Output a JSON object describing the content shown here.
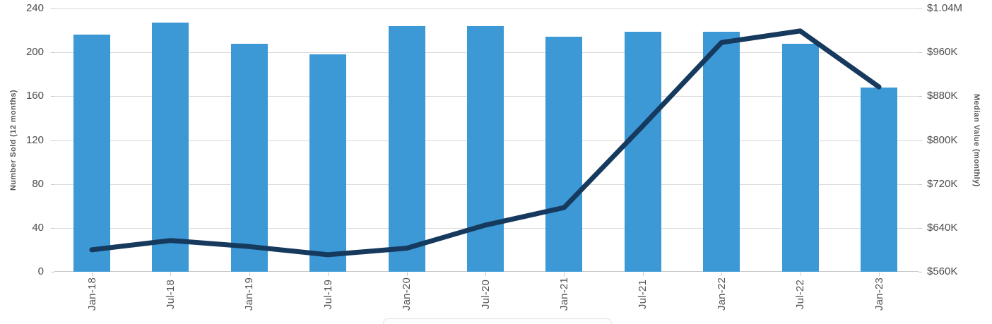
{
  "chart_data": {
    "type": "combo-bar-line",
    "categories": [
      "Jan-18",
      "Jul-18",
      "Jan-19",
      "Jul-19",
      "Jan-20",
      "Jul-20",
      "Jan-21",
      "Jul-21",
      "Jan-22",
      "Jul-22",
      "Jan-23"
    ],
    "series": [
      {
        "name": "Number Sold (12 months)",
        "type": "bar",
        "axis": "left",
        "values": [
          216,
          227,
          208,
          198,
          224,
          224,
          214,
          219,
          219,
          208,
          168
        ]
      },
      {
        "name": "Median Value (monthly)",
        "type": "line",
        "axis": "right",
        "values": [
          600000,
          617000,
          606000,
          591000,
          603000,
          645000,
          677000,
          826000,
          978000,
          999000,
          897000
        ]
      }
    ],
    "left_axis": {
      "label": "Number Sold (12 months)",
      "min": 0,
      "max": 240,
      "tick_labels_top_to_bottom": [
        "240",
        "200",
        "160",
        "120",
        "80",
        "40",
        "0"
      ]
    },
    "right_axis": {
      "label": "Median Value (monthly)",
      "min": 560000,
      "max": 1040000,
      "tick_labels_top_to_bottom": [
        "$1.04M",
        "$960K",
        "$880K",
        "$800K",
        "$720K",
        "$640K",
        "$560K"
      ]
    },
    "grid": true,
    "title": "",
    "legend_position": "bottom (cut off at screenshot edge)"
  },
  "colors": {
    "bar": "#3c99d6",
    "line": "#16395e",
    "gridline": "#dadada",
    "axis_line": "#c4c4c4",
    "tick_mark": "#c9c9c9",
    "tick_label": "#4d4d4d",
    "axis_title": "#555555",
    "legend_border": "#e3e3e3",
    "background": "#ffffff"
  }
}
